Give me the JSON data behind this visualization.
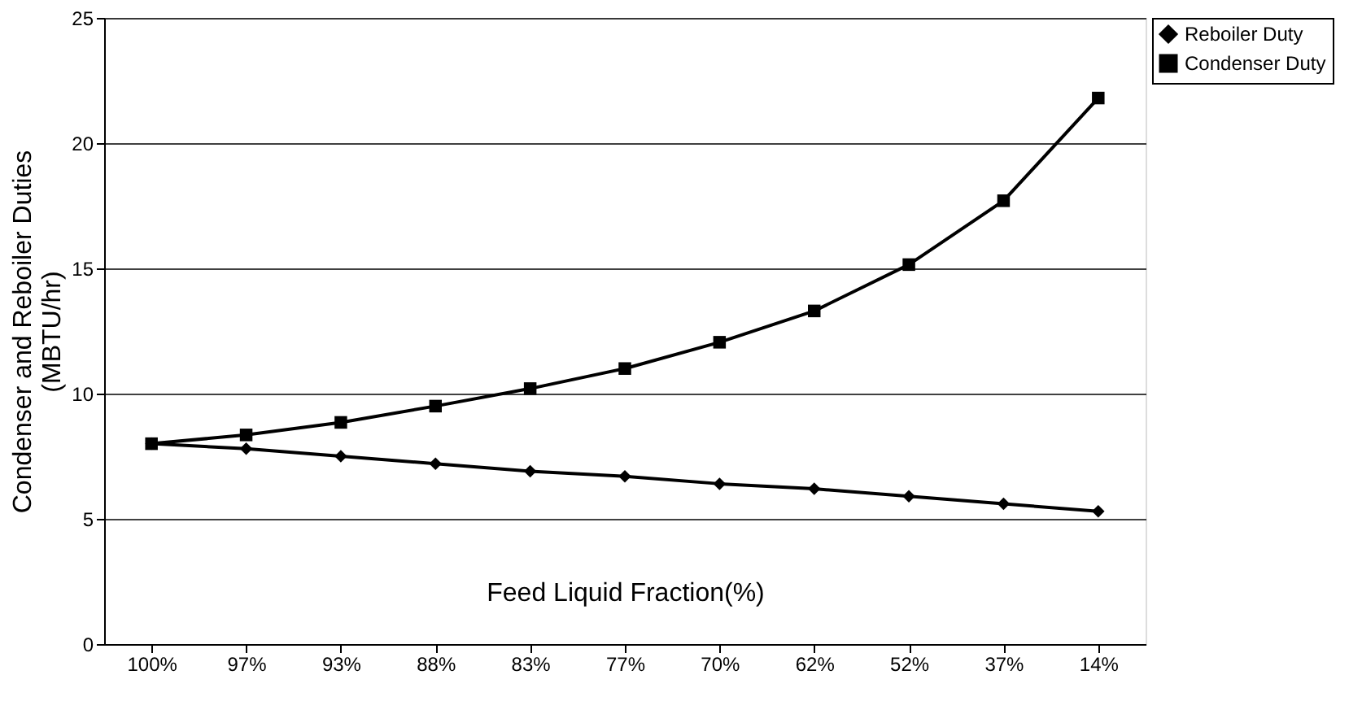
{
  "chart_data": {
    "type": "line",
    "xlabel": "Feed Liquid Fraction(%)",
    "ylabel": "Condenser and Reboiler Duties (MBTU/hr)",
    "categories": [
      "100%",
      "97%",
      "93%",
      "88%",
      "83%",
      "77%",
      "70%",
      "62%",
      "52%",
      "37%",
      "14%"
    ],
    "series": [
      {
        "name": "Reboiler Duty",
        "color": "#000000",
        "marker": "diamond",
        "values": [
          8.0,
          7.8,
          7.5,
          7.2,
          6.9,
          6.7,
          6.4,
          6.2,
          5.9,
          5.6,
          5.3
        ]
      },
      {
        "name": "Condenser Duty",
        "color": "#000000",
        "marker": "square",
        "values": [
          8.0,
          8.35,
          8.85,
          9.5,
          10.2,
          11.0,
          12.05,
          13.3,
          15.15,
          17.7,
          21.8
        ]
      }
    ],
    "ylim": [
      0,
      25
    ],
    "yticks": [
      0,
      5,
      10,
      15,
      20,
      25
    ],
    "grid": "y",
    "legend": "right",
    "line_style": "solid"
  }
}
